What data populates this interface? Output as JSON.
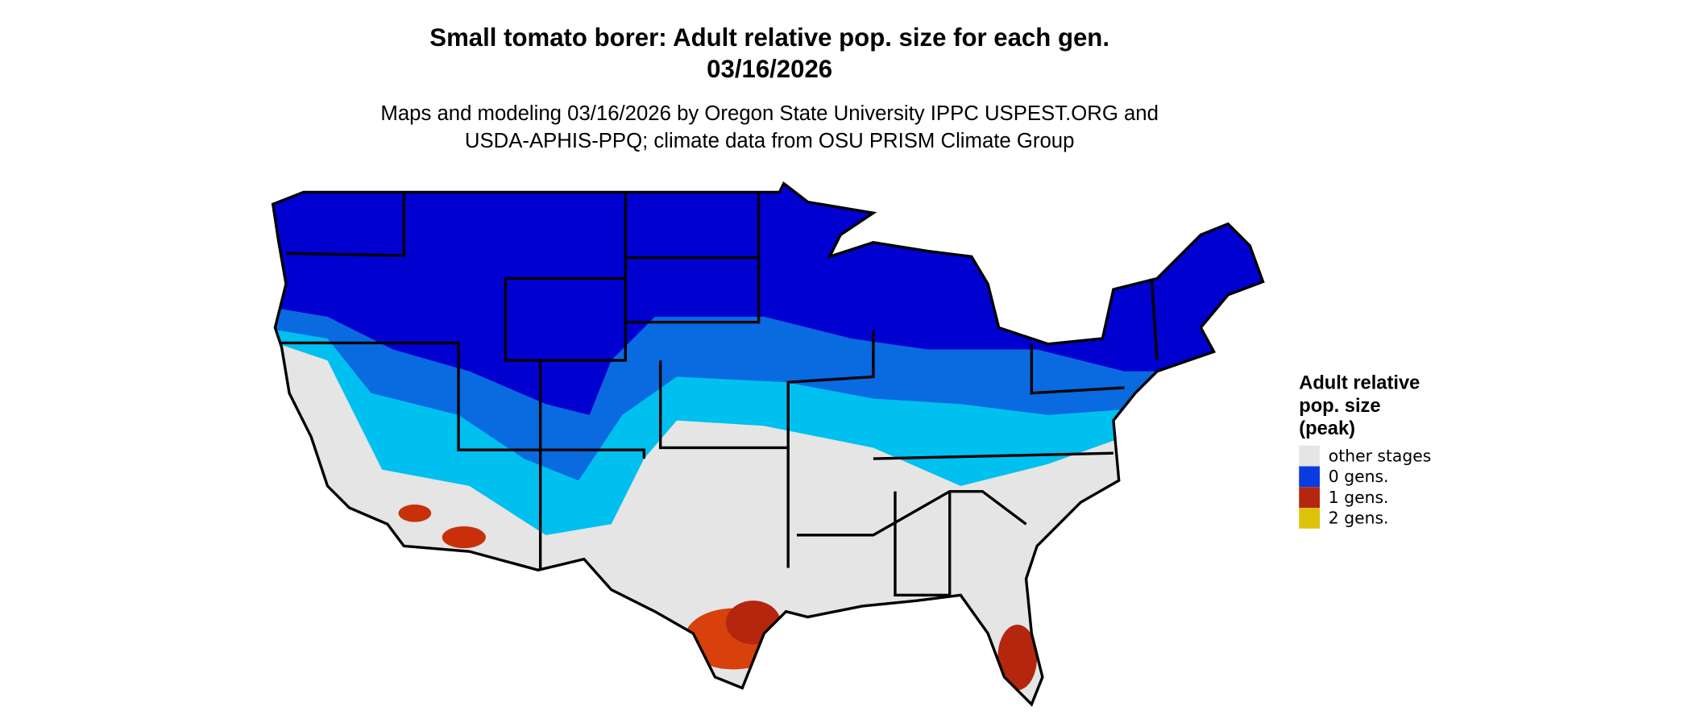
{
  "header": {
    "title": [
      "Small tomato borer: Adult relative pop. size for each gen.",
      "03/16/2026"
    ],
    "subtitle": [
      "Maps and modeling 03/16/2026 by Oregon State University IPPC USPEST.ORG and",
      "USDA-APHIS-PPQ; climate data from OSU PRISM Climate Group"
    ]
  },
  "legend": {
    "title": [
      "Adult relative",
      "pop. size",
      "(peak)"
    ],
    "items": [
      {
        "label": "other stages",
        "color": "#e5e5e5"
      },
      {
        "label": "0 gens.",
        "color": "#0a3be0"
      },
      {
        "label": "1 gens.",
        "color": "#b5260f"
      },
      {
        "label": "2 gens.",
        "color": "#dcc20a"
      }
    ]
  }
}
